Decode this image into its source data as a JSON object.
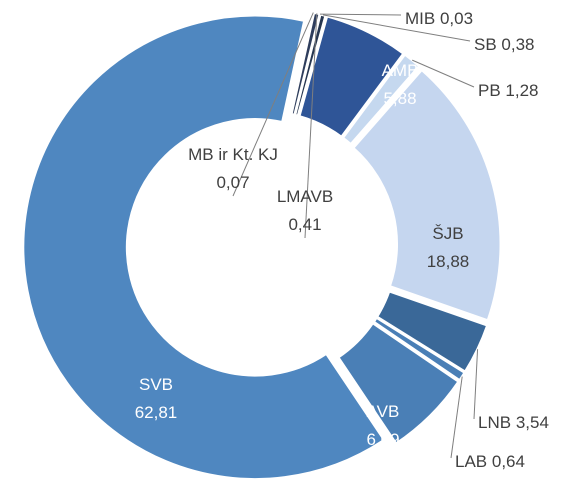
{
  "chart_data": {
    "type": "donut",
    "categories": [
      "MIB",
      "SB",
      "AMB",
      "PB",
      "ŠJB",
      "LNB",
      "LAB",
      "AVB",
      "SVB",
      "MB ir Kt. KJ",
      "LMAVB"
    ],
    "values": [
      0.03,
      0.38,
      5.88,
      1.28,
      18.88,
      3.54,
      0.64,
      6.09,
      62.81,
      0.07,
      0.41
    ],
    "value_labels": [
      "0,03",
      "0,38",
      "5,88",
      "1,28",
      "18,88",
      "3,54",
      "0,64",
      "6,09",
      "62,81",
      "0,07",
      "0,41"
    ],
    "colors": [
      "#1f2d4a",
      "#263650",
      "#2f5597",
      "#c5d8ef",
      "#c5d6ef",
      "#3a6898",
      "#4a7fb6",
      "#4a7fb6",
      "#4f87c0",
      "#2a3957",
      "#2e3d5c"
    ]
  }
}
